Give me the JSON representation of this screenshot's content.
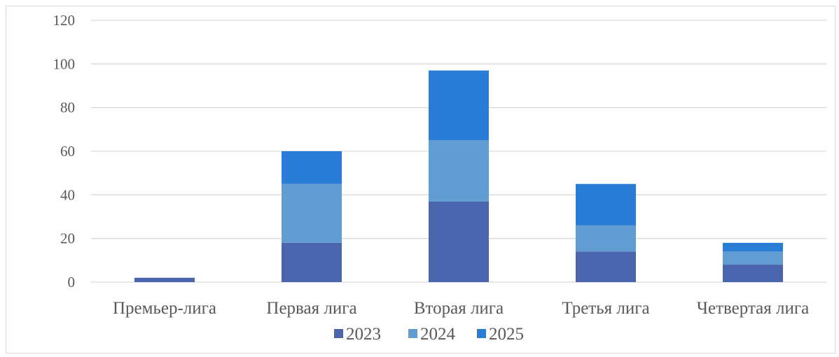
{
  "chart_data": {
    "type": "bar",
    "stacked": true,
    "categories": [
      "Премьер-лига",
      "Первая лига",
      "Вторая лига",
      "Третья лига",
      "Четвертая лига"
    ],
    "series": [
      {
        "name": "2023",
        "values": [
          2,
          18,
          37,
          14,
          8
        ],
        "color": "#4a65ae"
      },
      {
        "name": "2024",
        "values": [
          0,
          27,
          28,
          12,
          6
        ],
        "color": "#619dd2"
      },
      {
        "name": "2025",
        "values": [
          0,
          15,
          32,
          19,
          4
        ],
        "color": "#2a7dd6"
      }
    ],
    "yticks": [
      "0",
      "20",
      "40",
      "60",
      "80",
      "100",
      "120"
    ],
    "ylim": [
      0,
      120
    ],
    "grid": true,
    "legend_position": "bottom",
    "title": "",
    "xlabel": "",
    "ylabel": ""
  }
}
